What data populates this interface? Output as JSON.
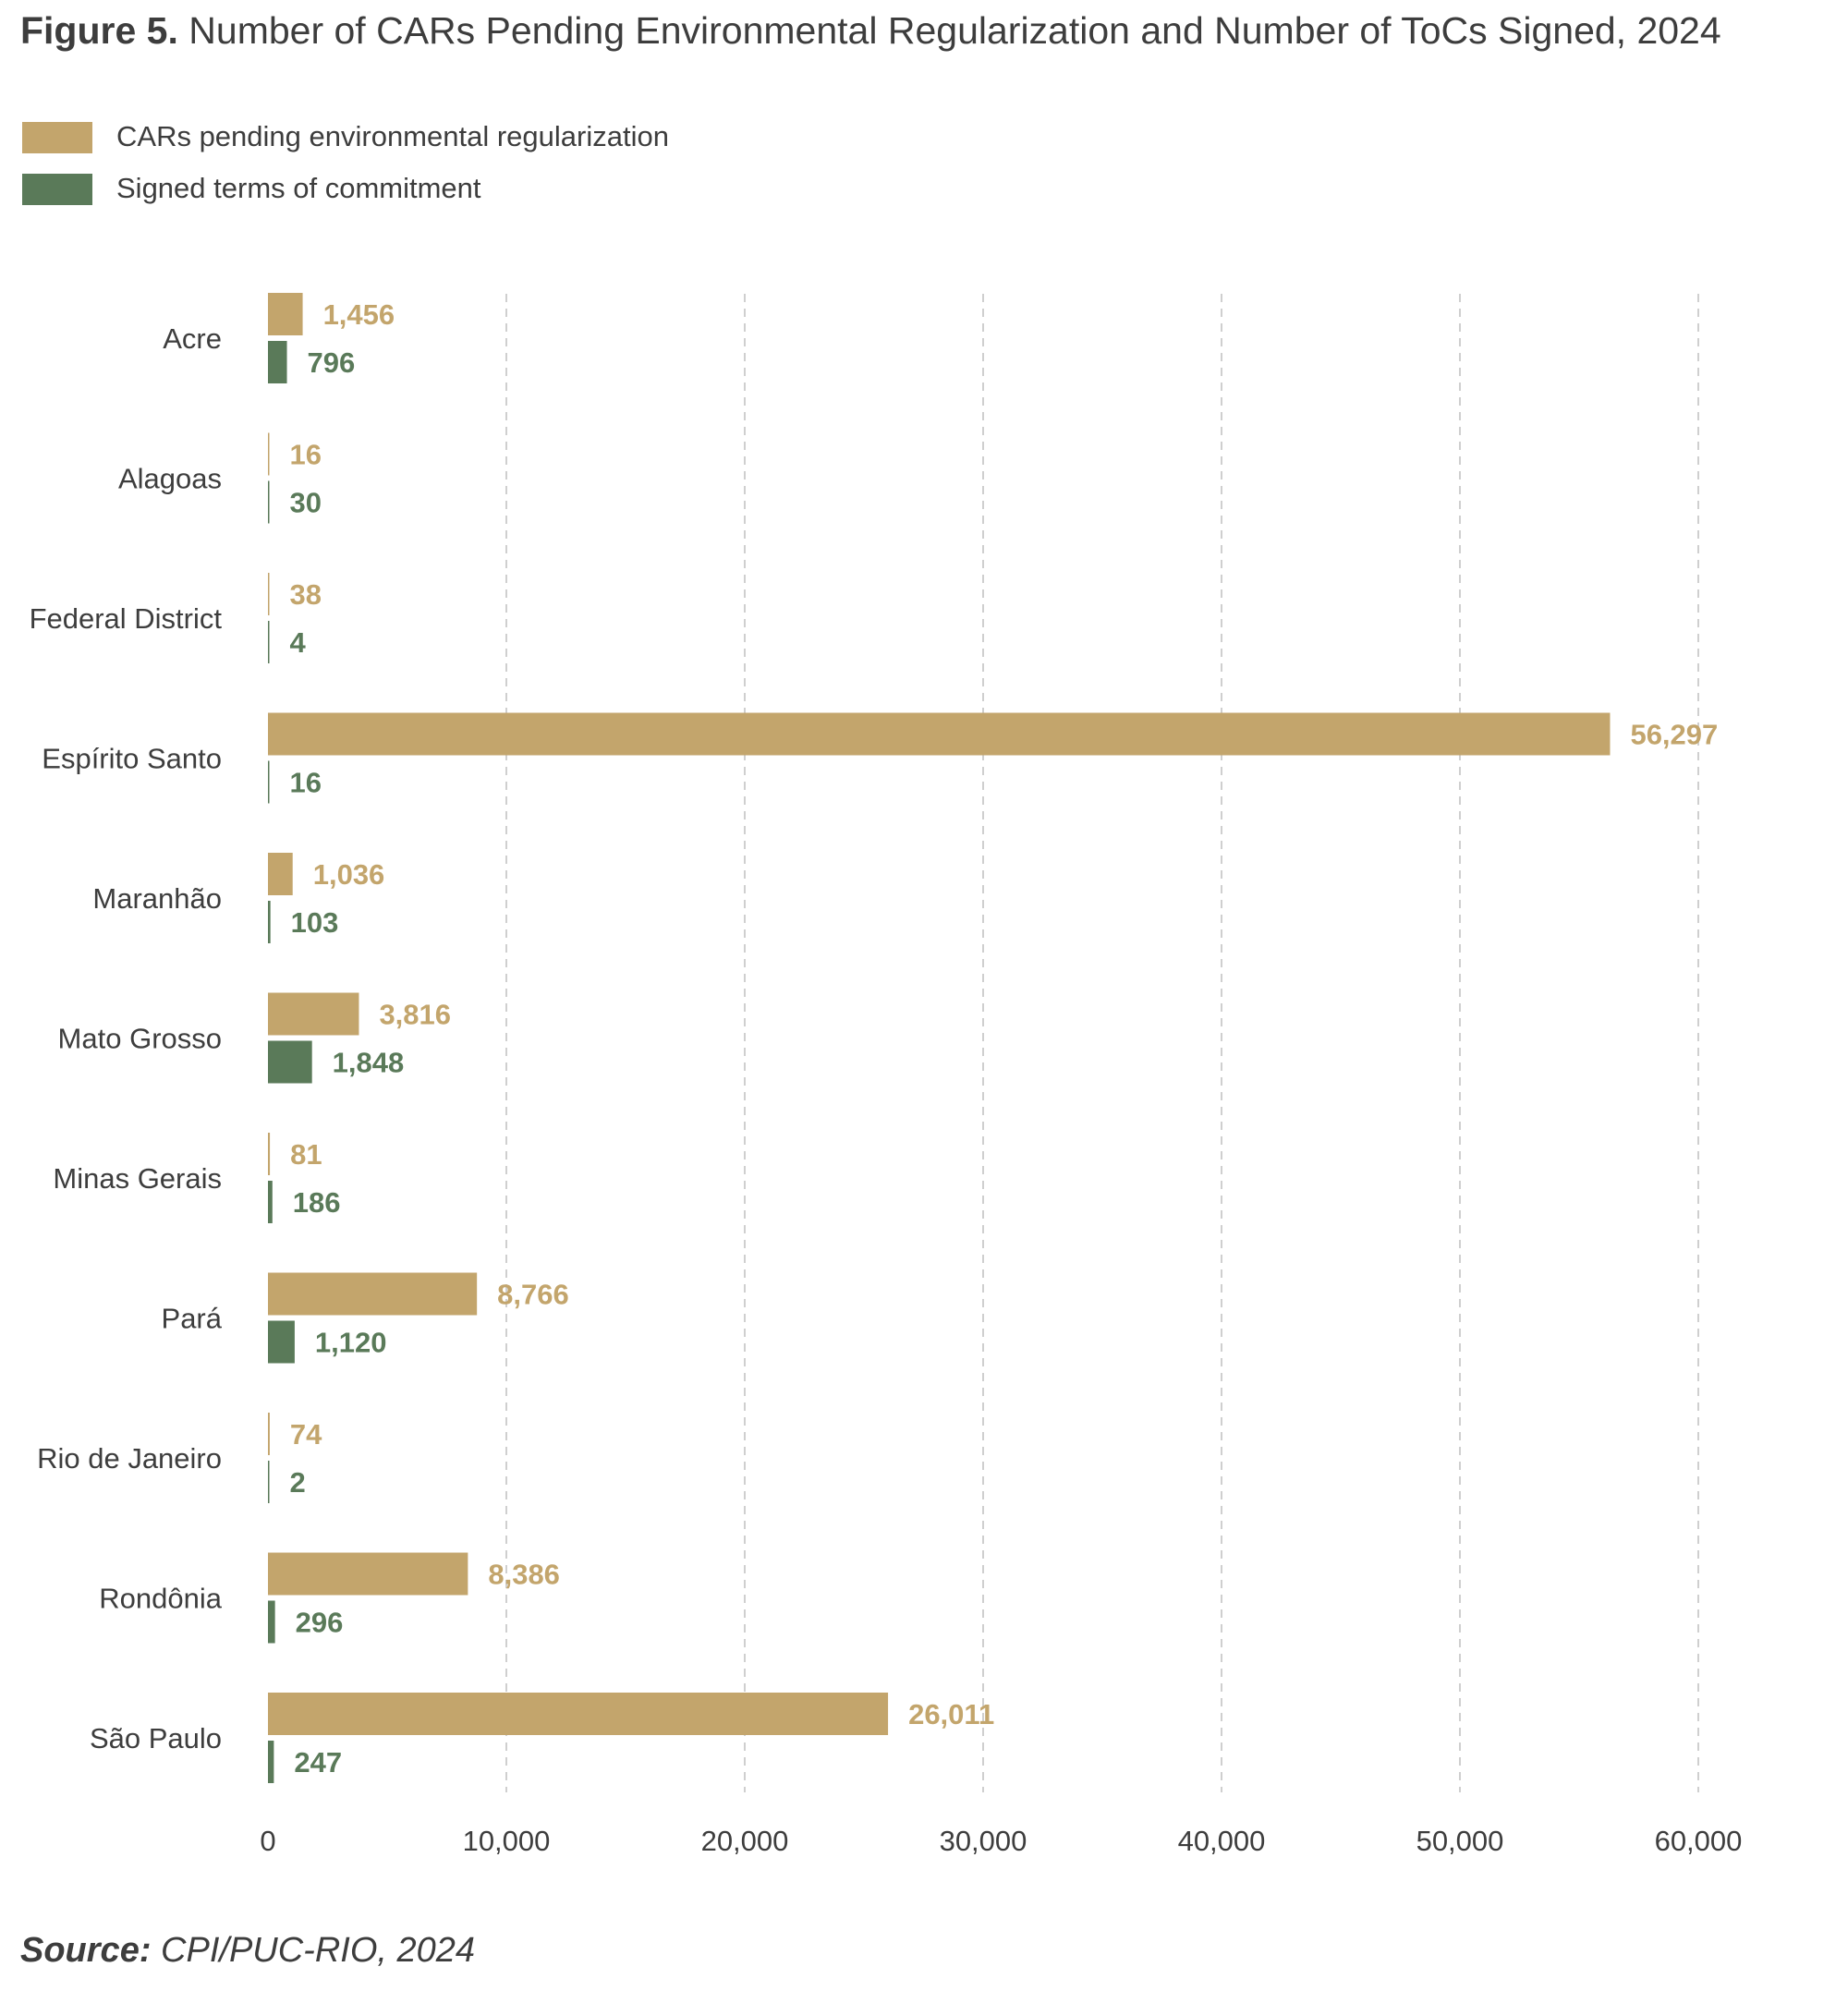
{
  "title": {
    "figure": "Figure 5.",
    "text": "Number of CARs Pending Environmental Regularization and Number of ToCs Signed, 2024"
  },
  "colors": {
    "cars": "#c3a56c",
    "tocs": "#5a7a59",
    "grid": "#cfcfcf",
    "text": "#3d3d3d"
  },
  "chart_data": {
    "type": "bar",
    "orientation": "horizontal",
    "categories": [
      "Acre",
      "Alagoas",
      "Federal District",
      "Espírito Santo",
      "Maranhão",
      "Mato Grosso",
      "Minas Gerais",
      "Pará",
      "Rio de Janeiro",
      "Rondônia",
      "São Paulo"
    ],
    "series": [
      {
        "name": "CARs pending environmental regularization",
        "color": "#c3a56c",
        "values": [
          1456,
          16,
          38,
          56297,
          1036,
          3816,
          81,
          8766,
          74,
          8386,
          26011
        ]
      },
      {
        "name": "Signed terms of commitment",
        "color": "#5a7a59",
        "values": [
          796,
          30,
          4,
          16,
          103,
          1848,
          186,
          1120,
          2,
          296,
          247
        ]
      }
    ],
    "xlim": [
      0,
      60000
    ],
    "xticks": [
      0,
      10000,
      20000,
      30000,
      40000,
      50000,
      60000
    ],
    "xtick_labels": [
      "0",
      "10,000",
      "20,000",
      "30,000",
      "40,000",
      "50,000",
      "60,000"
    ],
    "grid": "vertical dashed",
    "legend": "top-left",
    "data_labels": true
  },
  "source": {
    "label": "Source:",
    "text": " CPI/PUC-RIO, 2024"
  }
}
